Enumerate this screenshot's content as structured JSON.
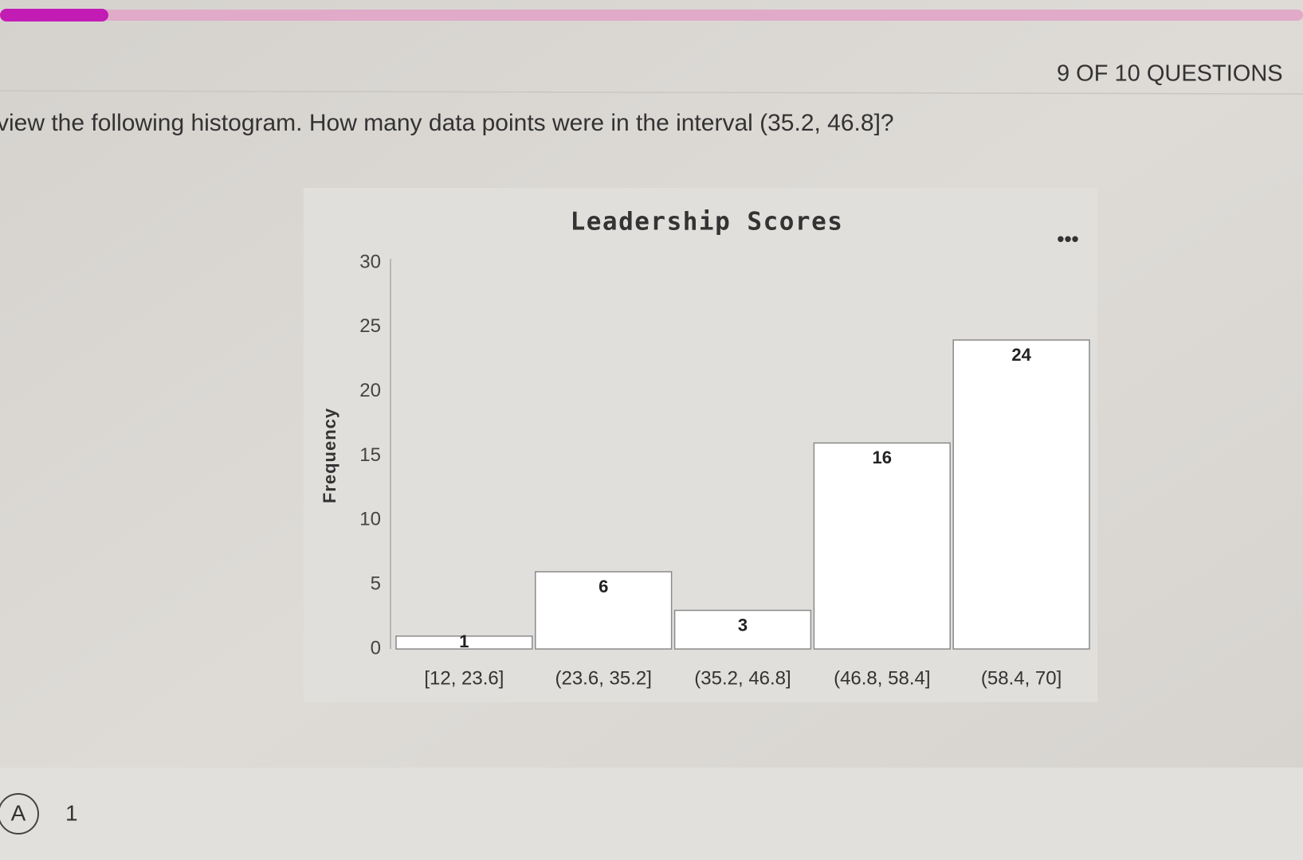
{
  "progress": {
    "label": "9 OF 10 QUESTIONS"
  },
  "question": "view the following histogram. How many data points were in the interval (35.2, 46.8]?",
  "answers": [
    {
      "letter": "A",
      "text": "1"
    }
  ],
  "chart_data": {
    "type": "bar",
    "title": "Leadership Scores",
    "y_label": "Frequency",
    "categories": [
      "[12, 23.6]",
      "(23.6, 35.2]",
      "(35.2, 46.8]",
      "(46.8, 58.4]",
      "(58.4, 70]"
    ],
    "values": [
      1,
      6,
      3,
      16,
      24
    ],
    "color": "#ffffff",
    "ylim": [
      0,
      30
    ],
    "yticks": [
      0,
      5,
      10,
      15,
      20,
      25,
      30
    ],
    "grid": false
  }
}
